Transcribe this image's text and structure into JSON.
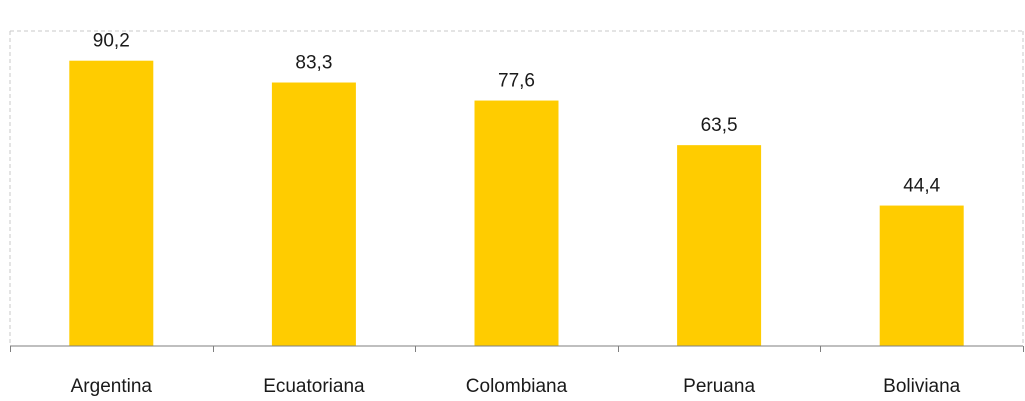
{
  "chart_data": {
    "type": "bar",
    "categories": [
      "Argentina",
      "Ecuatoriana",
      "Colombiana",
      "Peruana",
      "Boliviana"
    ],
    "values": [
      90.2,
      83.3,
      77.6,
      63.5,
      44.4
    ],
    "value_labels": [
      "90,2",
      "83,3",
      "77,6",
      "63,5",
      "44,4"
    ],
    "title": "",
    "xlabel": "",
    "ylabel": "",
    "ylim": [
      0,
      100
    ],
    "grid": false,
    "bar_color": "#FFCC00",
    "axis_color": "#7f7f7f",
    "frame_color": "#c8c8c8"
  }
}
